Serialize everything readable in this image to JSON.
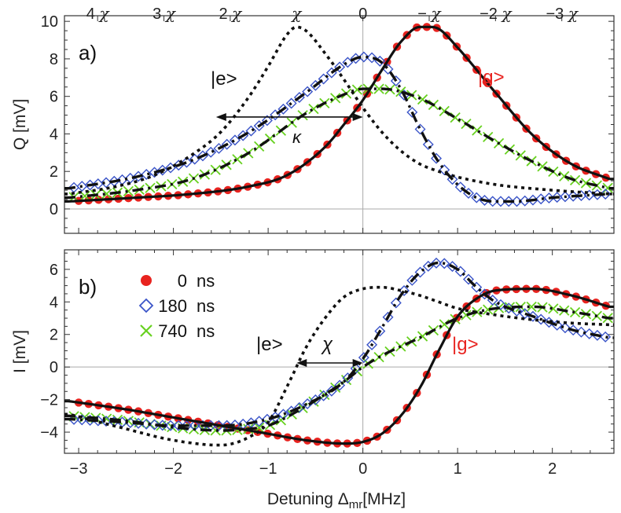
{
  "chart_data": [
    {
      "type": "scatter",
      "id": "a",
      "panel_label": "a)",
      "ylabel": "Q [mV]",
      "xlim": [
        -3.15,
        2.65
      ],
      "ylim": [
        -1.3,
        10.3
      ],
      "yticks": [
        0,
        2,
        4,
        6,
        8,
        10
      ],
      "top_axis_ticks": [
        {
          "x": -2.8,
          "label": "4 χ"
        },
        {
          "x": -2.1,
          "label": "3 χ"
        },
        {
          "x": -1.4,
          "label": "2 χ"
        },
        {
          "x": -0.7,
          "label": "χ"
        },
        {
          "x": 0.0,
          "label": "0"
        },
        {
          "x": 0.7,
          "label": "− χ"
        },
        {
          "x": 1.4,
          "label": "−2 χ"
        },
        {
          "x": 2.1,
          "label": "−3 χ"
        }
      ],
      "annotations": [
        {
          "text": "|e>",
          "color": "#111111"
        },
        {
          "text": "|g>",
          "color": "#e8231f"
        },
        {
          "text": "κ",
          "color": "#111111"
        }
      ],
      "kappa_arrow": {
        "x1": -1.55,
        "x2": 0.0,
        "y": 4.9
      },
      "theory": {
        "e_state": {
          "x": [
            -3.1,
            -2.6,
            -2.2,
            -1.8,
            -1.5,
            -1.2,
            -1.0,
            -0.8,
            -0.7,
            -0.6,
            -0.4,
            -0.2,
            0.0,
            0.2,
            0.4,
            0.6,
            0.8,
            1.0,
            1.4,
            2.0,
            2.6
          ],
          "y": [
            0.8,
            1.2,
            1.8,
            2.9,
            4.1,
            6.0,
            7.6,
            9.3,
            9.7,
            9.5,
            8.3,
            6.9,
            5.4,
            4.1,
            3.1,
            2.4,
            2.0,
            1.7,
            1.3,
            1.0,
            0.8
          ]
        },
        "g_state": {
          "x": [
            -3.1,
            -2.4,
            -1.8,
            -1.2,
            -0.8,
            -0.4,
            -0.2,
            0.0,
            0.2,
            0.4,
            0.6,
            0.7,
            0.8,
            1.0,
            1.4,
            1.8,
            2.2,
            2.6
          ],
          "y": [
            0.4,
            0.6,
            0.8,
            1.2,
            1.8,
            3.3,
            4.5,
            5.8,
            7.4,
            8.9,
            9.7,
            9.7,
            9.6,
            8.6,
            6.2,
            3.9,
            2.4,
            1.6
          ]
        },
        "t180": {
          "x": [
            -3.1,
            -2.4,
            -1.8,
            -1.2,
            -0.6,
            -0.2,
            0.0,
            0.2,
            0.4,
            0.6,
            0.8,
            1.0,
            1.2,
            1.4,
            1.6,
            2.0,
            2.6
          ],
          "y": [
            1.1,
            1.7,
            2.6,
            4.1,
            6.2,
            7.7,
            8.1,
            7.8,
            6.4,
            4.3,
            2.5,
            1.3,
            0.6,
            0.4,
            0.4,
            0.6,
            0.8
          ]
        },
        "t740": {
          "x": [
            -3.1,
            -2.4,
            -1.8,
            -1.2,
            -0.6,
            -0.2,
            0.0,
            0.2,
            0.6,
            1.0,
            1.4,
            1.8,
            2.2,
            2.6
          ],
          "y": [
            0.6,
            1.0,
            1.6,
            3.0,
            5.1,
            6.1,
            6.4,
            6.4,
            5.9,
            4.8,
            3.6,
            2.5,
            1.6,
            1.1
          ]
        }
      }
    },
    {
      "type": "scatter",
      "id": "b",
      "panel_label": "b)",
      "ylabel": "I [mV]",
      "xlabel": "Detuning Δ",
      "xlabel_sub": "mr",
      "xlabel_unit": "[MHz]",
      "xlim": [
        -3.15,
        2.65
      ],
      "ylim": [
        -5.3,
        7.2
      ],
      "xticks": [
        -3,
        -2,
        -1,
        0,
        1,
        2
      ],
      "yticks": [
        -4,
        -2,
        0,
        2,
        4,
        6
      ],
      "legend": [
        {
          "label": "0",
          "unit": "ns",
          "marker": "circle",
          "color": "#e8231f"
        },
        {
          "label": "180",
          "unit": "ns",
          "marker": "diamond",
          "color": "#3a54c8"
        },
        {
          "label": "740",
          "unit": "ns",
          "marker": "cross",
          "color": "#67d11f"
        }
      ],
      "annotations": [
        {
          "text": "|e>",
          "color": "#111111"
        },
        {
          "text": "|g>",
          "color": "#e8231f"
        },
        {
          "text": "χ",
          "color": "#111111"
        }
      ],
      "chi_arrow": {
        "x1": -0.7,
        "x2": 0.0,
        "y": 0.25
      },
      "theory": {
        "e_state": {
          "x": [
            -3.1,
            -2.5,
            -2.0,
            -1.5,
            -1.2,
            -1.0,
            -0.8,
            -0.6,
            -0.4,
            -0.2,
            0.0,
            0.2,
            0.4,
            0.6,
            0.8,
            1.0,
            1.4,
            1.8,
            2.2,
            2.6
          ],
          "y": [
            -2.9,
            -3.8,
            -4.5,
            -4.8,
            -4.3,
            -3.4,
            -1.2,
            1.2,
            3.0,
            4.3,
            4.8,
            4.9,
            4.7,
            4.4,
            4.0,
            3.6,
            3.2,
            2.9,
            2.7,
            2.6
          ]
        },
        "g_state": {
          "x": [
            -3.1,
            -2.5,
            -2.0,
            -1.5,
            -1.0,
            -0.6,
            -0.2,
            0.0,
            0.2,
            0.4,
            0.6,
            0.8,
            1.0,
            1.2,
            1.4,
            1.8,
            2.2,
            2.6
          ],
          "y": [
            -2.1,
            -2.6,
            -3.1,
            -3.6,
            -4.1,
            -4.5,
            -4.7,
            -4.6,
            -4.1,
            -3.0,
            -1.3,
            1.0,
            3.1,
            4.2,
            4.7,
            4.8,
            4.4,
            3.7
          ]
        },
        "t180": {
          "x": [
            -3.1,
            -2.5,
            -2.0,
            -1.5,
            -1.0,
            -0.6,
            -0.2,
            0.0,
            0.2,
            0.4,
            0.6,
            0.8,
            1.0,
            1.2,
            1.4,
            1.8,
            2.2,
            2.6
          ],
          "y": [
            -3.2,
            -3.4,
            -3.6,
            -3.6,
            -3.2,
            -2.3,
            -0.9,
            0.5,
            2.4,
            4.4,
            5.8,
            6.4,
            6.0,
            4.9,
            4.0,
            3.1,
            2.3,
            1.8
          ]
        },
        "t740": {
          "x": [
            -3.1,
            -2.5,
            -2.0,
            -1.5,
            -1.2,
            -1.0,
            -0.6,
            -0.2,
            0.0,
            0.2,
            0.6,
            1.0,
            1.4,
            1.8,
            2.2,
            2.6
          ],
          "y": [
            -3.0,
            -3.3,
            -3.7,
            -3.9,
            -3.8,
            -3.6,
            -2.4,
            -0.9,
            0.0,
            0.7,
            1.8,
            3.0,
            3.6,
            3.7,
            3.4,
            3.0
          ]
        }
      },
      "measured": {
        "t0": "red filled circles",
        "t180": "blue open diamonds",
        "t740": "green crosses"
      }
    }
  ]
}
